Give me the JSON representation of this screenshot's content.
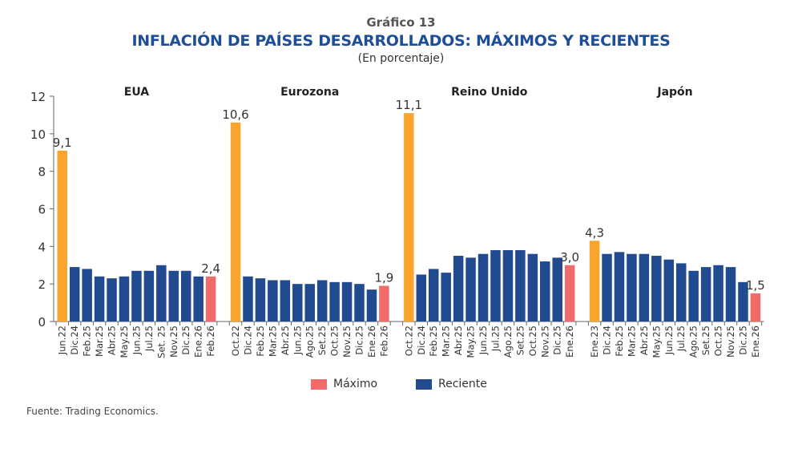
{
  "header": {
    "number": "Gráfico 13",
    "title": "INFLACIÓN DE PAÍSES DESARROLLADOS: MÁXIMOS Y RECIENTES",
    "subtitle": "(En porcentaje)"
  },
  "legend": [
    {
      "label": "Máximo",
      "color": "#f26b6b"
    },
    {
      "label": "Reciente",
      "color": "#214a91"
    }
  ],
  "source": "Fuente: Trading Economics.",
  "colors": {
    "peak": "#f9a52d",
    "recent": "#214a91",
    "latest": "#f26b6b"
  },
  "chart_data": {
    "type": "bar",
    "title": "INFLACIÓN DE PAÍSES DESARROLLADOS: MÁXIMOS Y RECIENTES",
    "subtitle": "(En porcentaje)",
    "xlabel": "",
    "ylabel": "",
    "ylim": [
      0,
      12
    ],
    "yticks": [
      0,
      2,
      4,
      6,
      8,
      10,
      12
    ],
    "grid": false,
    "legend_position": "bottom-center",
    "panels": [
      {
        "name": "EUA",
        "categories": [
          "Jun.22",
          "Dic.24",
          "Feb.25",
          "Mar.25",
          "Abr.25",
          "May.25",
          "Jun.25",
          "Jul.25",
          "Set. 25",
          "Nov.25",
          "Dic.25",
          "Ene.26",
          "Feb.26"
        ],
        "values": [
          9.1,
          2.9,
          2.8,
          2.4,
          2.3,
          2.4,
          2.7,
          2.7,
          3.0,
          2.7,
          2.7,
          2.4,
          2.4
        ],
        "kinds": [
          "peak",
          "recent",
          "recent",
          "recent",
          "recent",
          "recent",
          "recent",
          "recent",
          "recent",
          "recent",
          "recent",
          "recent",
          "latest"
        ],
        "labels": {
          "0": "9,1",
          "12": "2,4"
        }
      },
      {
        "name": "Eurozona",
        "categories": [
          "Oct.22",
          "Dic.24",
          "Feb.25",
          "Mar.25",
          "Abr.25",
          "Jun.25",
          "Ago.25",
          "Set.25",
          "Oct.25",
          "Nov.25",
          "Dic.25",
          "Ene.26",
          "Feb.26"
        ],
        "values": [
          10.6,
          2.4,
          2.3,
          2.2,
          2.2,
          2.0,
          2.0,
          2.2,
          2.1,
          2.1,
          2.0,
          1.7,
          1.9
        ],
        "kinds": [
          "peak",
          "recent",
          "recent",
          "recent",
          "recent",
          "recent",
          "recent",
          "recent",
          "recent",
          "recent",
          "recent",
          "recent",
          "latest"
        ],
        "labels": {
          "0": "10,6",
          "12": "1,9"
        }
      },
      {
        "name": "Reino Unido",
        "categories": [
          "Oct.22",
          "Dic.24",
          "Feb.25",
          "Mar.25",
          "Abr.25",
          "May.25",
          "Jun.25",
          "Jul.25",
          "Ago.25",
          "Set.25",
          "Oct.25",
          "Nov.25",
          "Dic.25",
          "Ene.26"
        ],
        "values": [
          11.1,
          2.5,
          2.8,
          2.6,
          3.5,
          3.4,
          3.6,
          3.8,
          3.8,
          3.8,
          3.6,
          3.2,
          3.4,
          3.0
        ],
        "kinds": [
          "peak",
          "recent",
          "recent",
          "recent",
          "recent",
          "recent",
          "recent",
          "recent",
          "recent",
          "recent",
          "recent",
          "recent",
          "recent",
          "latest"
        ],
        "labels": {
          "0": "11,1",
          "13": "3,0"
        }
      },
      {
        "name": "Japón",
        "categories": [
          "Ene.23",
          "Dic.24",
          "Feb.25",
          "Mar.25",
          "Abr.25",
          "May.25",
          "Jun.25",
          "Jul.25",
          "Ago.25",
          "Set.25",
          "Oct.25",
          "Nov.25",
          "Dic.25",
          "Ene.26"
        ],
        "values": [
          4.3,
          3.6,
          3.7,
          3.6,
          3.6,
          3.5,
          3.3,
          3.1,
          2.7,
          2.9,
          3.0,
          2.9,
          2.1,
          1.5
        ],
        "kinds": [
          "peak",
          "recent",
          "recent",
          "recent",
          "recent",
          "recent",
          "recent",
          "recent",
          "recent",
          "recent",
          "recent",
          "recent",
          "recent",
          "latest"
        ],
        "labels": {
          "0": "4,3",
          "13": "1,5"
        }
      }
    ]
  }
}
